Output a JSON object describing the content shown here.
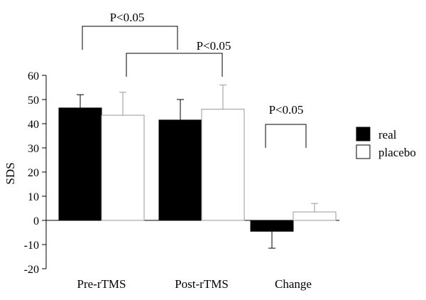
{
  "chart_data": {
    "type": "bar",
    "title": "",
    "xlabel": "",
    "ylabel": "SDS",
    "ylim": [
      -20,
      60
    ],
    "yticks": [
      60,
      50,
      40,
      30,
      20,
      10,
      0,
      -10,
      -20
    ],
    "categories": [
      "Pre-rTMS",
      "Post-rTMS",
      "Change"
    ],
    "series": [
      {
        "name": "real",
        "color": "#000000",
        "values": [
          46.5,
          41.5,
          -4.5
        ],
        "errors": [
          5.5,
          8.5,
          7.0
        ]
      },
      {
        "name": "placebo",
        "color": "#ffffff",
        "values": [
          43.5,
          46,
          3.5
        ],
        "errors": [
          9.5,
          10,
          3.5
        ]
      }
    ],
    "legend": {
      "position": "right",
      "items": [
        "real",
        "placebo"
      ]
    },
    "annotations": [
      "P<0.05",
      "P<0.05",
      "P<0.05"
    ],
    "grid": false
  }
}
